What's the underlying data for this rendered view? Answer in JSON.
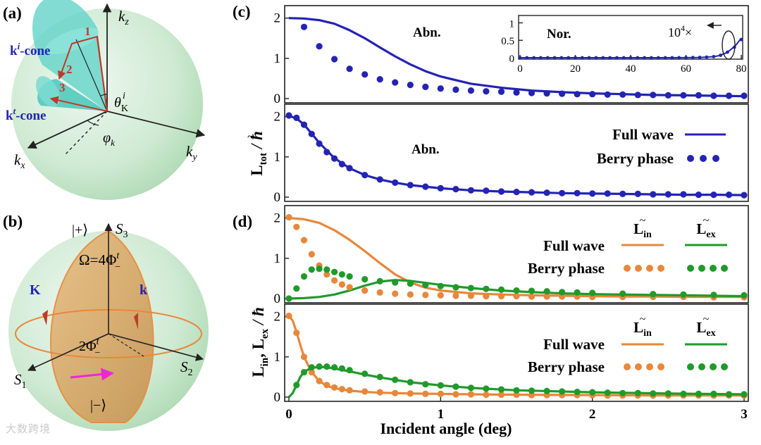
{
  "panels": {
    "a": {
      "tag": "(a)",
      "axes": {
        "kz": "k",
        "kz_sub": "z",
        "kx": "k",
        "kx_sub": "x",
        "ky": "k",
        "ky_sub": "y"
      },
      "cone_i": "k",
      "cone_i_sup": "i",
      "cone_i_suffix": "-cone",
      "cone_t": "k",
      "cone_t_sup": "t",
      "cone_t_suffix": "-cone",
      "markers": [
        "1",
        "2",
        "3"
      ],
      "theta": "θ",
      "theta_sub": "K",
      "theta_sup": "i",
      "phi": "φ",
      "phi_sub": "k"
    },
    "b": {
      "tag": "(b)",
      "plus": "|+⟩",
      "minus": "|−⟩",
      "s1": "S",
      "s1_sub": "1",
      "s2": "S",
      "s2_sub": "2",
      "s3": "S",
      "s3_sub": "3",
      "omega": "Ω=4Φ",
      "omega_sup": "t",
      "omega_sub": "−",
      "two_phi": "2Φ",
      "two_phi_sup": "t",
      "two_phi_sub": "−",
      "K": "K",
      "k": "k"
    },
    "c": {
      "tag": "(c)",
      "ylabel": "L",
      "ylabel_sub": "tot",
      "ylabel_unit": " / ħ"
    },
    "d": {
      "tag": "(d)",
      "ylabel_a": "L",
      "ylabel_a_sub": "in",
      "ylabel_sep": ", ",
      "ylabel_b": "L",
      "ylabel_b_sub": "ex",
      "ylabel_unit": " / ħ"
    }
  },
  "xlabel": "Incident angle (deg)",
  "legend": {
    "full_wave": "Full wave",
    "berry_phase": "Berry phase",
    "L": "L",
    "in": "in",
    "ex": "ex"
  },
  "colors": {
    "blue": "#2323b4",
    "orange": "#e8873a",
    "green": "#1f9a2b",
    "sphere": "#d3edd6",
    "cone": "#55cfc4",
    "arrow_red": "#c0392b",
    "tan": "#d9a866",
    "magenta": "#e82ad1"
  },
  "watermark": "大数跨境",
  "chart_data": [
    {
      "id": "c-top",
      "type": "line",
      "annotation": "Abn.",
      "xlim": [
        0,
        3
      ],
      "ylim": [
        0,
        2.1
      ],
      "yticks": [
        0,
        1,
        2
      ],
      "series": [
        {
          "style": "line",
          "color": "blue",
          "x": [
            0,
            0.1,
            0.2,
            0.3,
            0.4,
            0.5,
            0.6,
            0.7,
            0.8,
            0.9,
            1.0,
            1.2,
            1.4,
            1.6,
            1.8,
            2.0,
            2.2,
            2.4,
            2.6,
            2.8,
            3.0
          ],
          "y": [
            2.0,
            1.99,
            1.95,
            1.86,
            1.7,
            1.5,
            1.27,
            1.05,
            0.85,
            0.68,
            0.55,
            0.37,
            0.27,
            0.2,
            0.16,
            0.13,
            0.11,
            0.09,
            0.08,
            0.07,
            0.06
          ]
        },
        {
          "style": "dots",
          "color": "blue",
          "x": [
            0.1,
            0.2,
            0.3,
            0.4,
            0.5,
            0.6,
            0.7,
            0.8,
            0.9,
            1.0,
            1.1,
            1.2,
            1.3,
            1.4,
            1.5,
            1.6,
            1.7,
            1.8,
            1.9,
            2.0,
            2.1,
            2.2,
            2.3,
            2.4,
            2.5,
            2.6,
            2.7,
            2.8,
            2.9,
            3.0
          ],
          "y": [
            1.78,
            1.3,
            0.98,
            0.74,
            0.6,
            0.48,
            0.4,
            0.34,
            0.29,
            0.25,
            0.22,
            0.2,
            0.18,
            0.17,
            0.15,
            0.14,
            0.13,
            0.12,
            0.11,
            0.11,
            0.1,
            0.1,
            0.09,
            0.09,
            0.08,
            0.08,
            0.08,
            0.07,
            0.07,
            0.07
          ]
        }
      ],
      "inset": {
        "annotation": "Nor.",
        "factor": "10",
        "factor_sup": "4",
        "factor_suffix": "×",
        "xlim": [
          0,
          80
        ],
        "ylim": [
          0,
          1.05
        ],
        "xticks": [
          0,
          20,
          40,
          60,
          80
        ],
        "yticks": [
          0,
          0.5,
          1
        ],
        "ytick_labels": [
          "0",
          "0.5",
          "1"
        ],
        "series": [
          {
            "style": "line",
            "color": "blue",
            "x": [
              0,
              10,
              20,
              30,
              40,
              50,
              60,
              65,
              70,
              72,
              74,
              76,
              78,
              80
            ],
            "y": [
              0,
              0,
              0,
              0,
              0,
              0,
              0.003,
              0.008,
              0.03,
              0.06,
              0.12,
              0.22,
              0.36,
              0.56
            ]
          },
          {
            "style": "dots",
            "color": "blue",
            "x": [
              0,
              2.5,
              5,
              7.5,
              10,
              12.5,
              15,
              17.5,
              20,
              22.5,
              25,
              27.5,
              30,
              32.5,
              35,
              37.5,
              40,
              42.5,
              45,
              47.5,
              50,
              52.5,
              55,
              57.5,
              60,
              62.5,
              65,
              67.5,
              70,
              72.5,
              75,
              77.5,
              80
            ],
            "y": [
              0,
              0,
              0,
              0,
              0,
              0,
              0,
              0,
              0,
              0,
              0,
              0,
              0,
              0,
              0,
              0,
              0,
              0,
              0,
              0,
              0,
              0,
              0,
              0.002,
              0.004,
              0.006,
              0.01,
              0.018,
              0.032,
              0.07,
              0.16,
              0.3,
              0.52
            ]
          }
        ]
      }
    },
    {
      "id": "c-bottom",
      "type": "line",
      "annotation": "Abn.",
      "xlim": [
        0,
        3
      ],
      "ylim": [
        0,
        2.1
      ],
      "yticks": [
        0,
        1,
        2
      ],
      "series": [
        {
          "style": "line",
          "color": "blue",
          "x": [
            0,
            0.05,
            0.1,
            0.15,
            0.2,
            0.3,
            0.4,
            0.5,
            0.6,
            0.7,
            0.8,
            1.0,
            1.2,
            1.4,
            1.6,
            1.8,
            2.0,
            2.2,
            2.4,
            2.6,
            2.8,
            3.0
          ],
          "y": [
            2.02,
            1.96,
            1.8,
            1.58,
            1.35,
            0.97,
            0.72,
            0.55,
            0.44,
            0.36,
            0.3,
            0.22,
            0.17,
            0.14,
            0.12,
            0.1,
            0.09,
            0.08,
            0.07,
            0.06,
            0.06,
            0.05
          ]
        },
        {
          "style": "dots",
          "color": "blue",
          "x": [
            0,
            0.05,
            0.1,
            0.15,
            0.2,
            0.25,
            0.3,
            0.35,
            0.4,
            0.5,
            0.6,
            0.7,
            0.8,
            0.9,
            1.0,
            1.1,
            1.2,
            1.3,
            1.4,
            1.5,
            1.6,
            1.7,
            1.8,
            1.9,
            2.0,
            2.1,
            2.2,
            2.3,
            2.4,
            2.5,
            2.6,
            2.7,
            2.8,
            2.9,
            3.0
          ],
          "y": [
            2.03,
            1.97,
            1.8,
            1.57,
            1.33,
            1.12,
            0.96,
            0.82,
            0.72,
            0.55,
            0.44,
            0.36,
            0.3,
            0.26,
            0.22,
            0.2,
            0.17,
            0.16,
            0.14,
            0.13,
            0.12,
            0.11,
            0.1,
            0.1,
            0.09,
            0.09,
            0.08,
            0.08,
            0.07,
            0.07,
            0.07,
            0.06,
            0.06,
            0.06,
            0.05
          ]
        }
      ]
    },
    {
      "id": "d-top",
      "type": "line",
      "xlim": [
        0,
        3
      ],
      "ylim": [
        0,
        2.1
      ],
      "yticks": [
        0,
        1,
        2
      ],
      "series": [
        {
          "style": "line",
          "color": "orange",
          "x": [
            0,
            0.1,
            0.2,
            0.3,
            0.4,
            0.5,
            0.6,
            0.7,
            0.8,
            0.9,
            1.0,
            1.2,
            1.4,
            1.6,
            1.8,
            2.0,
            2.2,
            2.4,
            2.6,
            2.8,
            3.0
          ],
          "y": [
            2.0,
            1.97,
            1.88,
            1.7,
            1.46,
            1.18,
            0.88,
            0.6,
            0.4,
            0.27,
            0.2,
            0.13,
            0.1,
            0.08,
            0.07,
            0.06,
            0.05,
            0.05,
            0.04,
            0.04,
            0.04
          ]
        },
        {
          "style": "line",
          "color": "green",
          "x": [
            0,
            0.1,
            0.2,
            0.3,
            0.4,
            0.5,
            0.6,
            0.7,
            0.8,
            0.9,
            1.0,
            1.2,
            1.4,
            1.6,
            1.8,
            2.0,
            2.2,
            2.4,
            2.6,
            2.8,
            3.0
          ],
          "y": [
            0,
            0.01,
            0.04,
            0.1,
            0.2,
            0.32,
            0.42,
            0.46,
            0.44,
            0.39,
            0.34,
            0.26,
            0.2,
            0.16,
            0.13,
            0.11,
            0.1,
            0.09,
            0.08,
            0.07,
            0.06
          ]
        },
        {
          "style": "dots",
          "color": "orange",
          "x": [
            0,
            0.05,
            0.1,
            0.15,
            0.2,
            0.25,
            0.3,
            0.35,
            0.4,
            0.5,
            0.6,
            0.7,
            0.8,
            0.9,
            1.0,
            1.1,
            1.2,
            1.3,
            1.4,
            1.5,
            1.6,
            1.7,
            1.8,
            1.9,
            2.0,
            2.2,
            2.4,
            2.6,
            2.8,
            3.0
          ],
          "y": [
            2.02,
            1.78,
            1.45,
            1.1,
            0.82,
            0.6,
            0.45,
            0.35,
            0.28,
            0.2,
            0.15,
            0.12,
            0.1,
            0.09,
            0.08,
            0.07,
            0.07,
            0.06,
            0.06,
            0.06,
            0.05,
            0.05,
            0.05,
            0.05,
            0.04,
            0.04,
            0.04,
            0.04,
            0.03,
            0.03
          ]
        },
        {
          "style": "dots",
          "color": "green",
          "x": [
            0,
            0.05,
            0.1,
            0.15,
            0.2,
            0.25,
            0.3,
            0.35,
            0.4,
            0.5,
            0.6,
            0.7,
            0.8,
            0.9,
            1.0,
            1.1,
            1.2,
            1.3,
            1.4,
            1.5,
            1.6,
            1.7,
            1.8,
            1.9,
            2.0,
            2.2,
            2.4,
            2.6,
            2.8,
            3.0
          ],
          "y": [
            0,
            0.25,
            0.55,
            0.72,
            0.74,
            0.72,
            0.66,
            0.6,
            0.55,
            0.48,
            0.43,
            0.4,
            0.37,
            0.34,
            0.31,
            0.28,
            0.26,
            0.24,
            0.22,
            0.2,
            0.19,
            0.18,
            0.16,
            0.15,
            0.14,
            0.12,
            0.11,
            0.1,
            0.09,
            0.08
          ]
        }
      ]
    },
    {
      "id": "d-bottom",
      "type": "line",
      "xlim": [
        0,
        3
      ],
      "ylim": [
        0,
        2.1
      ],
      "yticks": [
        0,
        1,
        2
      ],
      "xticks": [
        0,
        1,
        2,
        3
      ],
      "series": [
        {
          "style": "line",
          "color": "orange",
          "x": [
            0,
            0.025,
            0.05,
            0.075,
            0.1,
            0.15,
            0.2,
            0.25,
            0.3,
            0.4,
            0.5,
            0.6,
            0.8,
            1.0,
            1.2,
            1.5,
            2.0,
            2.5,
            3.0
          ],
          "y": [
            2.02,
            1.9,
            1.62,
            1.3,
            1.0,
            0.62,
            0.4,
            0.28,
            0.22,
            0.16,
            0.13,
            0.11,
            0.09,
            0.08,
            0.07,
            0.06,
            0.05,
            0.04,
            0.04
          ]
        },
        {
          "style": "line",
          "color": "green",
          "x": [
            0,
            0.025,
            0.05,
            0.075,
            0.1,
            0.15,
            0.2,
            0.25,
            0.3,
            0.4,
            0.5,
            0.6,
            0.8,
            1.0,
            1.2,
            1.5,
            2.0,
            2.5,
            3.0
          ],
          "y": [
            0,
            0.1,
            0.3,
            0.5,
            0.63,
            0.73,
            0.75,
            0.74,
            0.71,
            0.64,
            0.56,
            0.49,
            0.37,
            0.29,
            0.23,
            0.17,
            0.12,
            0.09,
            0.07
          ]
        },
        {
          "style": "dots",
          "color": "orange",
          "x": [
            0,
            0.05,
            0.1,
            0.15,
            0.2,
            0.25,
            0.3,
            0.35,
            0.4,
            0.5,
            0.6,
            0.7,
            0.8,
            0.9,
            1.0,
            1.1,
            1.2,
            1.3,
            1.4,
            1.5,
            1.6,
            1.7,
            1.8,
            1.9,
            2.0,
            2.1,
            2.2,
            2.3,
            2.4,
            2.5,
            2.6,
            2.7,
            2.8,
            2.9,
            3.0
          ],
          "y": [
            2.02,
            1.6,
            1.0,
            0.62,
            0.4,
            0.3,
            0.24,
            0.2,
            0.17,
            0.14,
            0.12,
            0.1,
            0.09,
            0.08,
            0.08,
            0.07,
            0.07,
            0.06,
            0.06,
            0.06,
            0.05,
            0.05,
            0.05,
            0.05,
            0.05,
            0.04,
            0.04,
            0.04,
            0.04,
            0.04,
            0.04,
            0.04,
            0.04,
            0.04,
            0.04
          ]
        },
        {
          "style": "dots",
          "color": "green",
          "x": [
            0.05,
            0.1,
            0.15,
            0.2,
            0.25,
            0.3,
            0.35,
            0.4,
            0.5,
            0.6,
            0.7,
            0.8,
            0.9,
            1.0,
            1.1,
            1.2,
            1.3,
            1.4,
            1.5,
            1.6,
            1.7,
            1.8,
            1.9,
            2.0,
            2.1,
            2.2,
            2.3,
            2.4,
            2.5,
            2.6,
            2.7,
            2.8,
            2.9,
            3.0
          ],
          "y": [
            0.3,
            0.62,
            0.74,
            0.76,
            0.76,
            0.74,
            0.71,
            0.67,
            0.58,
            0.5,
            0.43,
            0.37,
            0.32,
            0.29,
            0.26,
            0.23,
            0.21,
            0.19,
            0.17,
            0.16,
            0.15,
            0.14,
            0.13,
            0.12,
            0.11,
            0.1,
            0.1,
            0.09,
            0.09,
            0.08,
            0.08,
            0.08,
            0.07,
            0.07
          ]
        }
      ]
    }
  ]
}
